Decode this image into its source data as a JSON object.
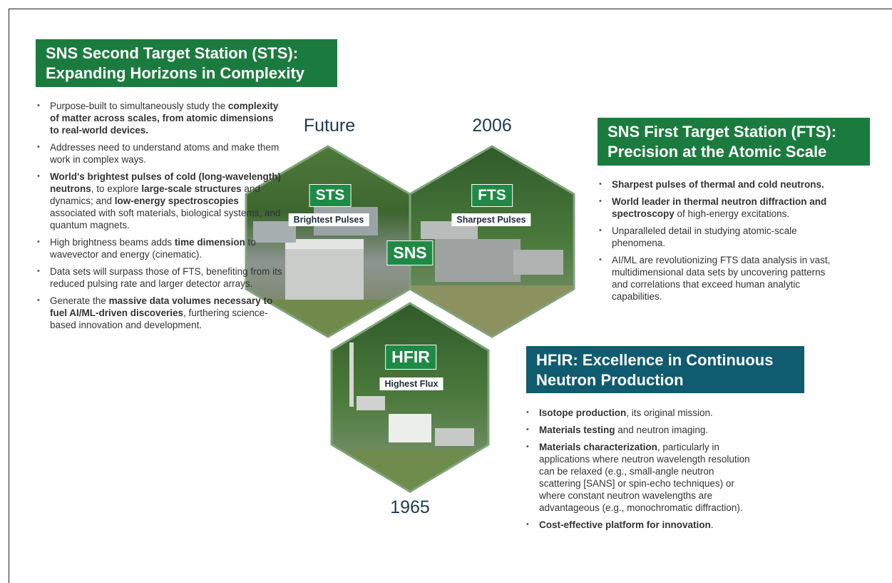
{
  "sts": {
    "title": [
      "SNS Second Target Station (STS):",
      "Expanding Horizons in Complexity"
    ],
    "bullets": [
      [
        {
          "text": "Purpose-built to simultaneously study the ",
          "bold": false
        },
        {
          "text": "complexity of matter across scales, from atomic dimensions to real-world devices.",
          "bold": true
        }
      ],
      [
        {
          "text": "Addresses need to understand atoms and make them work in complex ways.",
          "bold": false
        }
      ],
      [
        {
          "text": "World's brightest pulses of cold (long-wavelength) neutrons",
          "bold": true
        },
        {
          "text": ", to explore ",
          "bold": false
        },
        {
          "text": "large-scale structures",
          "bold": true
        },
        {
          "text": " and dynamics; and ",
          "bold": false
        },
        {
          "text": "low-energy spectroscopies",
          "bold": true
        },
        {
          "text": " associated with soft materials, biological systems, and quantum magnets.",
          "bold": false
        }
      ],
      [
        {
          "text": "High brightness beams adds ",
          "bold": false
        },
        {
          "text": "time dimension",
          "bold": true
        },
        {
          "text": " to wavevector and energy (cinematic).",
          "bold": false
        }
      ],
      [
        {
          "text": "Data sets will surpass those of FTS, benefiting from its reduced pulsing rate and larger detector arrays.",
          "bold": false
        }
      ],
      [
        {
          "text": "Generate the ",
          "bold": false
        },
        {
          "text": "massive data volumes necessary to fuel AI/ML-driven discoveries",
          "bold": true
        },
        {
          "text": ", furthering science-based innovation and development.",
          "bold": false
        }
      ]
    ]
  },
  "fts": {
    "title": [
      "SNS First Target Station (FTS):",
      "Precision at the Atomic Scale"
    ],
    "bullets": [
      [
        {
          "text": "Sharpest pulses of thermal and cold neutrons.",
          "bold": true
        }
      ],
      [
        {
          "text": "World leader in thermal neutron diffraction and spectroscopy",
          "bold": true
        },
        {
          "text": " of high-energy excitations.",
          "bold": false
        }
      ],
      [
        {
          "text": "Unparalleled detail in studying atomic-scale phenomena.",
          "bold": false
        }
      ],
      [
        {
          "text": "AI/ML are revolutionizing FTS data analysis in vast, multidimensional data sets by uncovering patterns and correlations that exceed human analytic capabilities.",
          "bold": false
        }
      ]
    ]
  },
  "hfir": {
    "title": [
      "HFIR: Excellence in Continuous",
      "Neutron Production"
    ],
    "bullets": [
      [
        {
          "text": "Isotope production",
          "bold": true
        },
        {
          "text": ", its original mission.",
          "bold": false
        }
      ],
      [
        {
          "text": "Materials testing",
          "bold": true
        },
        {
          "text": " and neutron imaging.",
          "bold": false
        }
      ],
      [
        {
          "text": "Materials characterization",
          "bold": true
        },
        {
          "text": ", particularly in applications where neutron wavelength resolution can be relaxed (e.g., small-angle neutron scattering [SANS] or spin-echo techniques) or where constant neutron wavelengths are advantageous (e.g., monochromatic diffraction).",
          "bold": false
        }
      ],
      [
        {
          "text": "Cost-effective platform for innovation",
          "bold": true
        },
        {
          "text": ".",
          "bold": false
        }
      ]
    ]
  },
  "images": {
    "sts": {
      "year": "Future",
      "label": "STS",
      "tagline": "Brightest Pulses"
    },
    "fts": {
      "year": "2006",
      "label": "FTS",
      "tagline": "Sharpest Pulses"
    },
    "hfir": {
      "year": "1965",
      "label": "HFIR",
      "tagline": "Highest Flux"
    },
    "center_label": "SNS"
  }
}
